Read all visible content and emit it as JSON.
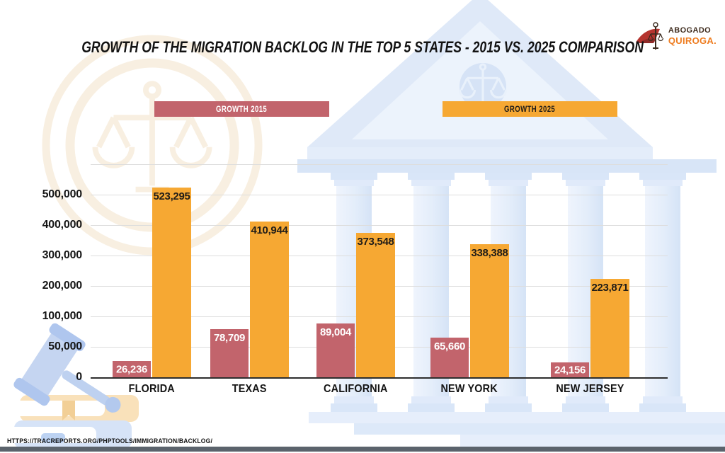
{
  "brand": {
    "line1": "ABOGADO",
    "line2": "QUIROGA.",
    "icon": "scales-swoosh-icon"
  },
  "title": "GROWTH OF THE MIGRATION BACKLOG IN THE TOP 5 STATES - 2015 VS. 2025 COMPARISON",
  "legend": {
    "s2015": {
      "label": "GROWTH 2015",
      "color": "#c2646c",
      "text_color": "#ffffff"
    },
    "s2025": {
      "label": "GROWTH 2025",
      "color": "#f6a833",
      "text_color": "#211d18"
    }
  },
  "source_url": "HTTPS://TRACREPORTS.ORG/PHPTOOLS/IMMIGRATION/BACKLOG/",
  "decorative_icons": [
    "courthouse-icon",
    "scales-of-justice-icon",
    "gavel-icon",
    "law-books-icon"
  ],
  "chart_data": {
    "type": "bar",
    "title": "GROWTH OF THE MIGRATION BACKLOG IN THE TOP 5 STATES - 2015 VS. 2025 COMPARISON",
    "categories": [
      "FLORIDA",
      "TEXAS",
      "CALIFORNIA",
      "NEW YORK",
      "NEW JERSEY"
    ],
    "series": [
      {
        "name": "GROWTH 2015",
        "color": "#c2646c",
        "label_color": "#ffffff",
        "values": [
          26236,
          78709,
          89004,
          65660,
          24156
        ]
      },
      {
        "name": "GROWTH 2025",
        "color": "#f6a833",
        "label_color": "#211d18",
        "values": [
          523295,
          410944,
          373548,
          338388,
          223871
        ]
      }
    ],
    "y_tick_values": [
      500000,
      400000,
      300000,
      200000,
      100000,
      50000,
      0
    ],
    "y_tick_labels": [
      "500,000",
      "400,000",
      "300,000",
      "200,000",
      "100,000",
      "50,000",
      "0"
    ],
    "axis_scale": "segmented: equal pixel spacing between consecutive ticks (0,50k,100k,200k,300k,400k,500k)",
    "grid": true,
    "legend_position": "top",
    "value_labels": true
  }
}
